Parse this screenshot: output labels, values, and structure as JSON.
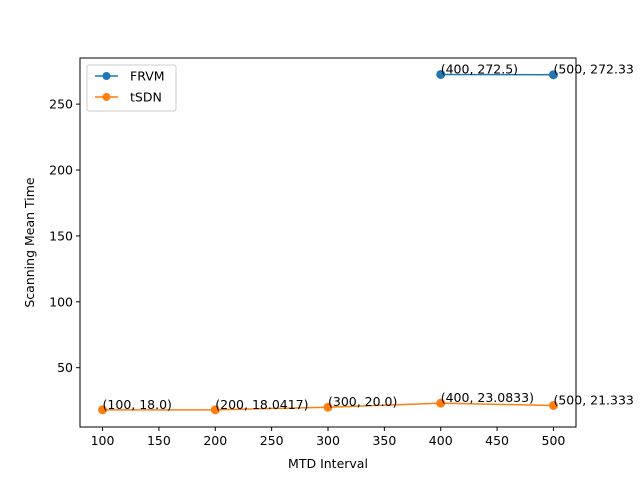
{
  "chart_data": {
    "type": "line",
    "title": "",
    "xlabel": "MTD Interval",
    "ylabel": "Scanning Mean Time",
    "xlim": [
      80,
      520
    ],
    "ylim": [
      5.0,
      285.0
    ],
    "xticks": [
      100,
      150,
      200,
      250,
      300,
      350,
      400,
      450,
      500
    ],
    "yticks": [
      50,
      100,
      150,
      200,
      250
    ],
    "grid": false,
    "legend_position": "top-left",
    "series": [
      {
        "name": "FRVM",
        "color": "#1f77b4",
        "marker": "circle",
        "points": [
          {
            "x": 400,
            "y": 272.5,
            "label": "(400, 272.5)"
          },
          {
            "x": 500,
            "y": 272.33,
            "label": "(500, 272.33"
          }
        ]
      },
      {
        "name": "tSDN",
        "color": "#ff7f0e",
        "marker": "circle",
        "points": [
          {
            "x": 100,
            "y": 18.0,
            "label": "(100, 18.0)"
          },
          {
            "x": 200,
            "y": 18.0417,
            "label": "(200, 18.0417)"
          },
          {
            "x": 300,
            "y": 20.0,
            "label": "(300, 20.0)"
          },
          {
            "x": 400,
            "y": 23.0833,
            "label": "(400, 23.0833)"
          },
          {
            "x": 500,
            "y": 21.3333,
            "label": "(500, 21.333"
          }
        ]
      }
    ]
  }
}
